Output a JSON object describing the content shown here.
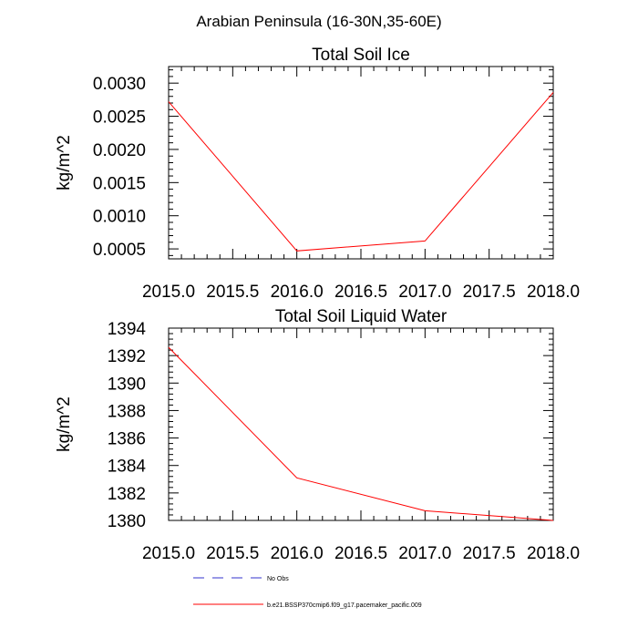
{
  "page": {
    "suptitle": "Arabian Peninsula (16-30N,35-60E)"
  },
  "legend": [
    {
      "label": "No Obs",
      "color": "#3333cc",
      "dashed": true
    },
    {
      "label": "b.e21.BSSP370cmip6.f09_g17.pacemaker_pacific.009",
      "color": "#ff0000",
      "dashed": false
    }
  ],
  "chart_data": [
    {
      "type": "line",
      "title": "Total Soil Ice",
      "xlabel": "",
      "ylabel": "kg/m^2",
      "xlim": [
        2015.0,
        2018.0
      ],
      "ylim": [
        0.00035,
        0.00325
      ],
      "xticks": [
        2015.0,
        2015.5,
        2016.0,
        2016.5,
        2017.0,
        2017.5,
        2018.0
      ],
      "xtick_labels": [
        "2015.0",
        "2015.5",
        "2016.0",
        "2016.5",
        "2017.0",
        "2017.5",
        "2018.0"
      ],
      "yticks": [
        0.0005,
        0.001,
        0.0015,
        0.002,
        0.0025,
        0.003
      ],
      "ytick_labels": [
        "0.0005",
        "0.0010",
        "0.0015",
        "0.0020",
        "0.0025",
        "0.0030"
      ],
      "grid": false,
      "series": [
        {
          "name": "b.e21.BSSP370cmip6.f09_g17.pacemaker_pacific.009",
          "color": "#ff0000",
          "x": [
            2015.0,
            2016.0,
            2017.0,
            2018.0
          ],
          "y": [
            0.00272,
            0.00047,
            0.00062,
            0.00286
          ]
        }
      ]
    },
    {
      "type": "line",
      "title": "Total Soil Liquid Water",
      "xlabel": "",
      "ylabel": "kg/m^2",
      "xlim": [
        2015.0,
        2018.0
      ],
      "ylim": [
        1380,
        1394
      ],
      "xticks": [
        2015.0,
        2015.5,
        2016.0,
        2016.5,
        2017.0,
        2017.5,
        2018.0
      ],
      "xtick_labels": [
        "2015.0",
        "2015.5",
        "2016.0",
        "2016.5",
        "2017.0",
        "2017.5",
        "2018.0"
      ],
      "yticks": [
        1380,
        1382,
        1384,
        1386,
        1388,
        1390,
        1392,
        1394
      ],
      "ytick_labels": [
        "1380",
        "1382",
        "1384",
        "1386",
        "1388",
        "1390",
        "1392",
        "1394"
      ],
      "grid": false,
      "series": [
        {
          "name": "b.e21.BSSP370cmip6.f09_g17.pacemaker_pacific.009",
          "color": "#ff0000",
          "x": [
            2015.0,
            2016.0,
            2017.0,
            2018.0
          ],
          "y": [
            1392.6,
            1383.1,
            1380.7,
            1380.0
          ]
        }
      ]
    }
  ]
}
